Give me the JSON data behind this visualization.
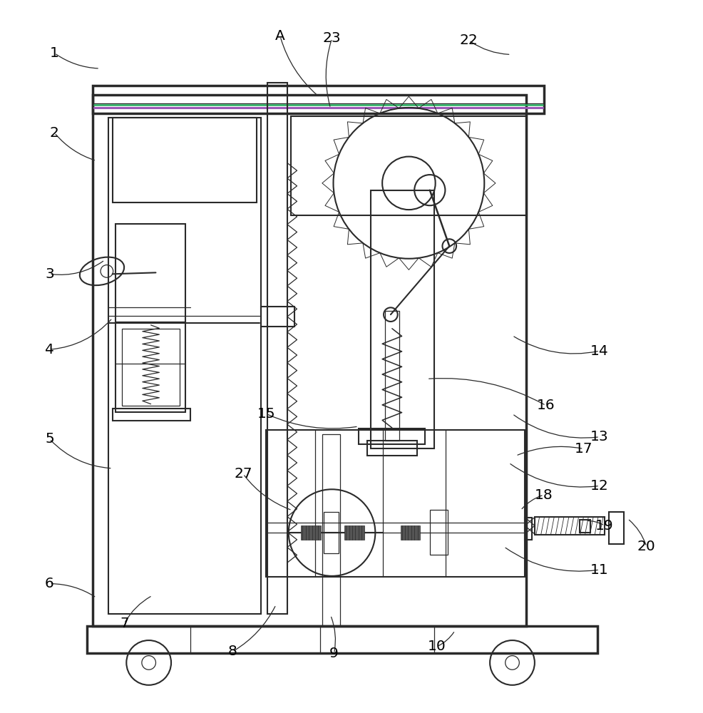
{
  "bg": "#ffffff",
  "lc": "#2a2a2a",
  "lw": 1.5,
  "tlw": 0.9,
  "thk": 2.5,
  "fig_w": 9.86,
  "fig_h": 10.0,
  "purple": "#9b59b6",
  "green": "#27ae60",
  "labels": {
    "1": [
      0.075,
      0.934,
      0.14,
      0.912
    ],
    "2": [
      0.075,
      0.82,
      0.135,
      0.78
    ],
    "3": [
      0.068,
      0.618,
      0.147,
      0.638
    ],
    "4": [
      0.068,
      0.51,
      0.158,
      0.555
    ],
    "5": [
      0.068,
      0.382,
      0.158,
      0.34
    ],
    "6": [
      0.068,
      0.175,
      0.135,
      0.155
    ],
    "7": [
      0.175,
      0.118,
      0.215,
      0.158
    ],
    "8": [
      0.33,
      0.078,
      0.392,
      0.145
    ],
    "9": [
      0.475,
      0.075,
      0.47,
      0.13
    ],
    "10": [
      0.622,
      0.085,
      0.648,
      0.108
    ],
    "11": [
      0.855,
      0.195,
      0.718,
      0.228
    ],
    "12": [
      0.855,
      0.315,
      0.725,
      0.348
    ],
    "13": [
      0.855,
      0.385,
      0.73,
      0.418
    ],
    "14": [
      0.855,
      0.508,
      0.73,
      0.53
    ],
    "15": [
      0.378,
      0.418,
      0.51,
      0.4
    ],
    "16": [
      0.778,
      0.43,
      0.608,
      0.468
    ],
    "17": [
      0.832,
      0.368,
      0.735,
      0.358
    ],
    "18": [
      0.775,
      0.302,
      0.742,
      0.28
    ],
    "19": [
      0.862,
      0.258,
      0.835,
      0.265
    ],
    "20": [
      0.922,
      0.228,
      0.895,
      0.268
    ],
    "22": [
      0.668,
      0.952,
      0.728,
      0.932
    ],
    "23": [
      0.472,
      0.955,
      0.47,
      0.855
    ],
    "27": [
      0.345,
      0.332,
      0.415,
      0.28
    ],
    "A": [
      0.398,
      0.958,
      0.453,
      0.872
    ]
  }
}
